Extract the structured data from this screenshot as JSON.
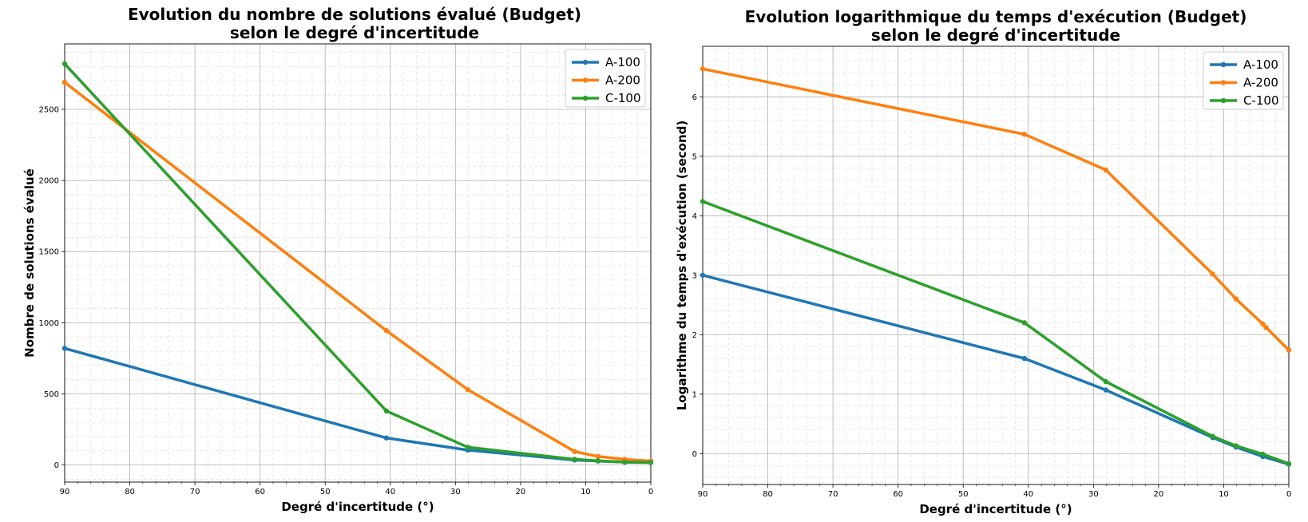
{
  "chart_data": [
    {
      "type": "line",
      "title": "Evolution du nombre de solutions évalué (Budget)",
      "subtitle": "selon  le degré d'incertitude",
      "xlabel": "Degré d'incertitude (°)",
      "ylabel": "Nombre de solutions évalué",
      "xlim": [
        90,
        0
      ],
      "ylim": [
        -120,
        2960
      ],
      "xticks": [
        "90",
        "80",
        "70",
        "60",
        "50",
        "40",
        "30",
        "20",
        "10",
        "0"
      ],
      "yticks": [
        "0",
        "500",
        "1000",
        "1500",
        "2000",
        "2500"
      ],
      "grid": true,
      "legend_position": "top-right",
      "series": [
        {
          "name": "A-100",
          "color": "#1f77b4",
          "x": [
            90,
            40.6,
            28.1,
            11.7,
            8.1,
            4,
            0
          ],
          "y": [
            820,
            190,
            105,
            35,
            28,
            20,
            18
          ]
        },
        {
          "name": "A-200",
          "color": "#ff7f0e",
          "x": [
            90,
            40.6,
            28.1,
            11.7,
            8.1,
            4,
            0
          ],
          "y": [
            2690,
            945,
            530,
            95,
            60,
            40,
            28
          ]
        },
        {
          "name": "C-100",
          "color": "#2ca02c",
          "x": [
            90,
            40.6,
            28.1,
            11.7,
            8.1,
            4,
            0
          ],
          "y": [
            2820,
            380,
            125,
            40,
            30,
            20,
            18
          ]
        }
      ]
    },
    {
      "type": "line",
      "title": "Evolution logarithmique du temps d'exécution (Budget)",
      "subtitle": "selon  le degré d'incertitude",
      "xlabel": "Degré d'incertitude (°)",
      "ylabel": "Logarithme du temps d'exécution (second)",
      "xlim": [
        90,
        0
      ],
      "ylim": [
        -0.52,
        6.85
      ],
      "xticks": [
        "90",
        "80",
        "70",
        "60",
        "50",
        "40",
        "30",
        "20",
        "10",
        "0"
      ],
      "yticks": [
        "0",
        "1",
        "2",
        "3",
        "4",
        "5",
        "6"
      ],
      "grid": true,
      "legend_position": "top-right",
      "series": [
        {
          "name": "A-100",
          "color": "#1f77b4",
          "x": [
            90,
            40.6,
            28.1,
            11.7,
            8.1,
            4,
            0
          ],
          "y": [
            3.0,
            1.6,
            1.07,
            0.27,
            0.11,
            -0.05,
            -0.18
          ]
        },
        {
          "name": "A-200",
          "color": "#ff7f0e",
          "x": [
            90,
            40.6,
            28.1,
            11.7,
            8.1,
            4,
            3.5,
            0
          ],
          "y": [
            6.47,
            5.37,
            4.77,
            3.02,
            2.6,
            2.18,
            2.12,
            1.74
          ]
        },
        {
          "name": "C-100",
          "color": "#2ca02c",
          "x": [
            90,
            40.6,
            28.1,
            11.7,
            8.1,
            4,
            0
          ],
          "y": [
            4.24,
            2.2,
            1.21,
            0.29,
            0.13,
            -0.01,
            -0.17
          ]
        }
      ]
    }
  ]
}
